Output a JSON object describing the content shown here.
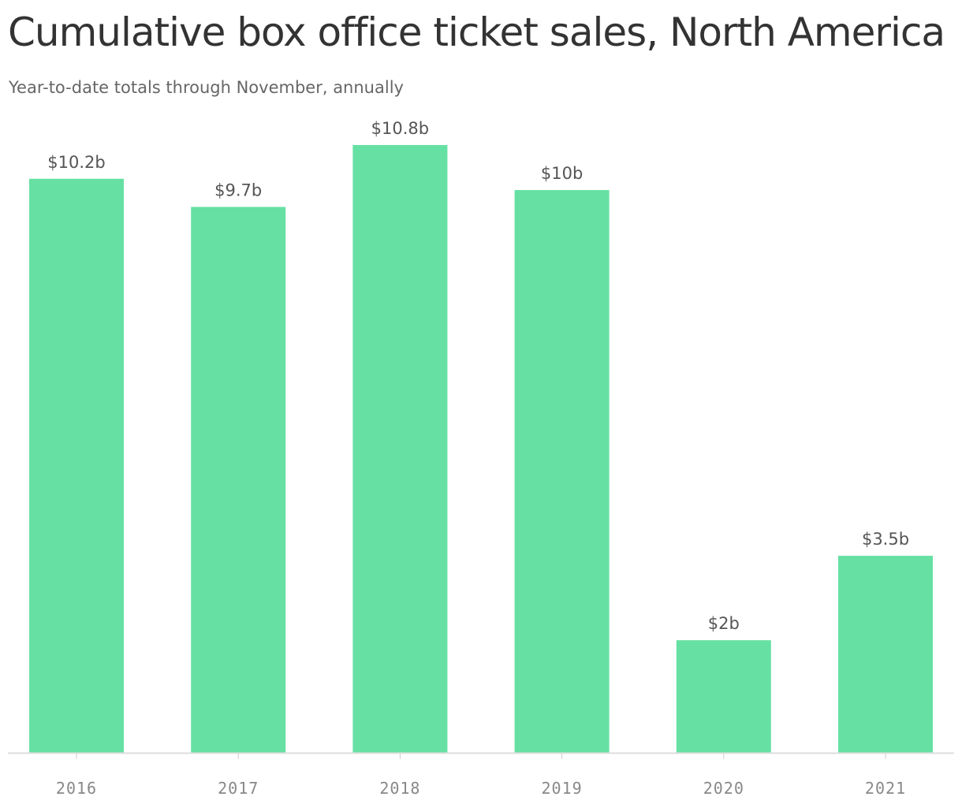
{
  "header": {
    "title": "Cumulative box office ticket sales, North America",
    "subtitle": "Year-to-date totals through November, annually"
  },
  "colors": {
    "bar": "#66e0a3",
    "axis": "#dddddd",
    "tick": "#cccccc"
  },
  "chart_data": {
    "type": "bar",
    "title": "Cumulative box office ticket sales, North America",
    "subtitle": "Year-to-date totals through November, annually",
    "categories": [
      "2016",
      "2017",
      "2018",
      "2019",
      "2020",
      "2021"
    ],
    "values": [
      10.2,
      9.7,
      10.8,
      10.0,
      2.0,
      3.5
    ],
    "value_labels": [
      "$10.2b",
      "$9.7b",
      "$10.8b",
      "$10b",
      "$2b",
      "$3.5b"
    ],
    "xlabel": "",
    "ylabel": "",
    "ylim": [
      0,
      10.8
    ],
    "grid": false,
    "legend": "none"
  }
}
